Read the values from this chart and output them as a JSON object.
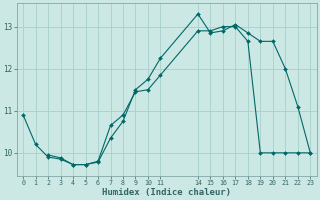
{
  "xlabel": "Humidex (Indice chaleur)",
  "bg_color": "#cce8e4",
  "grid_color": "#a8d0cc",
  "line_color": "#006868",
  "line1_x": [
    0,
    1,
    2,
    3,
    4,
    5,
    6,
    7,
    8,
    9,
    10,
    11,
    14,
    15,
    16,
    17,
    18,
    19,
    20,
    21,
    22,
    23
  ],
  "line1_y": [
    10.9,
    10.2,
    9.9,
    9.85,
    9.72,
    9.72,
    9.78,
    10.35,
    10.75,
    11.5,
    11.75,
    12.25,
    13.3,
    12.85,
    12.9,
    13.05,
    12.85,
    12.65,
    12.65,
    12.0,
    11.1,
    10.0
  ],
  "line2_x": [
    2,
    3,
    4,
    5,
    6,
    7,
    8,
    9,
    10,
    11,
    14,
    15,
    16,
    17,
    18,
    19,
    20,
    21,
    22,
    23
  ],
  "line2_y": [
    9.95,
    9.88,
    9.72,
    9.72,
    9.8,
    10.65,
    10.9,
    11.45,
    11.5,
    11.85,
    12.9,
    12.9,
    13.0,
    13.0,
    12.65,
    10.0,
    10.0,
    10.0,
    10.0,
    10.0
  ],
  "ylim": [
    9.45,
    13.55
  ],
  "yticks": [
    10,
    11,
    12,
    13
  ],
  "xticks": [
    0,
    1,
    2,
    3,
    4,
    5,
    6,
    7,
    8,
    9,
    10,
    11,
    14,
    15,
    16,
    17,
    18,
    19,
    20,
    21,
    22,
    23
  ],
  "xlim": [
    -0.5,
    23.5
  ],
  "tick_color": "#336666",
  "label_color": "#336666"
}
